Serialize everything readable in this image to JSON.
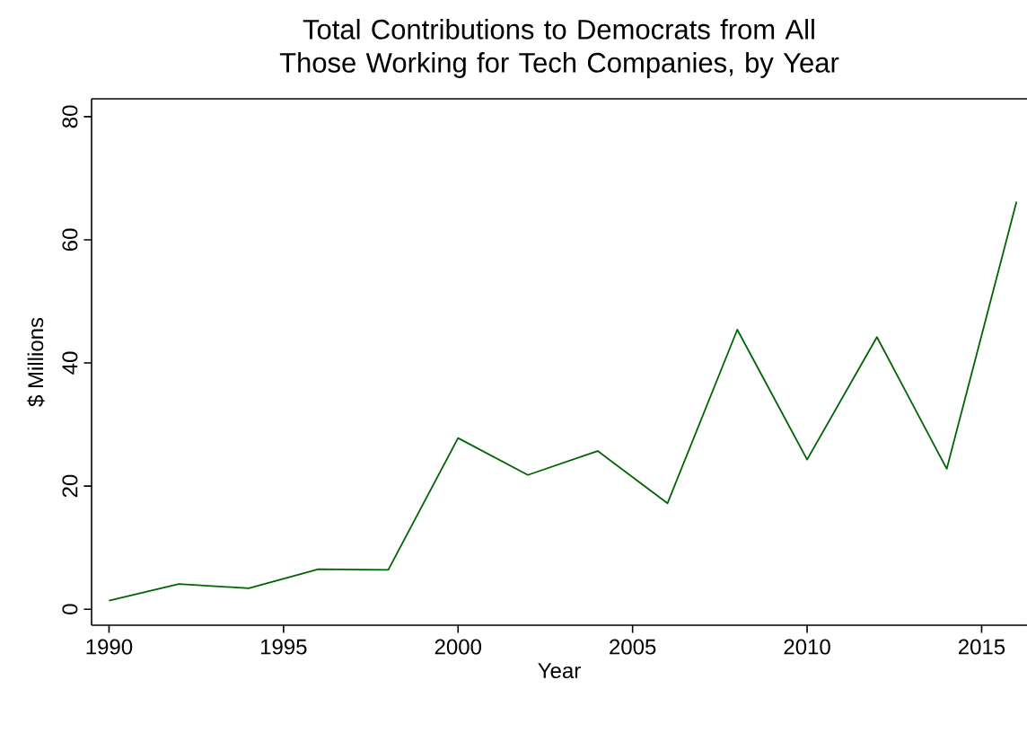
{
  "chart_data": {
    "type": "line",
    "title": "Total Contributions to Democrats from All Those Working for Tech Companies, by Year",
    "xlabel": "Year",
    "ylabel": "$ Millions",
    "x": [
      1990,
      1992,
      1994,
      1996,
      1998,
      2000,
      2002,
      2004,
      2006,
      2008,
      2010,
      2012,
      2014,
      2016
    ],
    "series": [
      {
        "color": "#006400",
        "values": [
          1.4,
          4.1,
          3.4,
          6.5,
          6.4,
          27.8,
          21.8,
          25.7,
          17.2,
          45.4,
          24.3,
          44.2,
          22.8,
          66.2
        ]
      }
    ],
    "xlim": [
      1989.5,
      2016.3
    ],
    "ylim": [
      -2.6,
      82.9
    ],
    "xticks": [
      1990,
      1995,
      2000,
      2005,
      2010,
      2015
    ],
    "yticks": [
      0,
      20,
      40,
      60,
      80
    ],
    "grid": false,
    "marker": "none",
    "line_style": "solid"
  }
}
